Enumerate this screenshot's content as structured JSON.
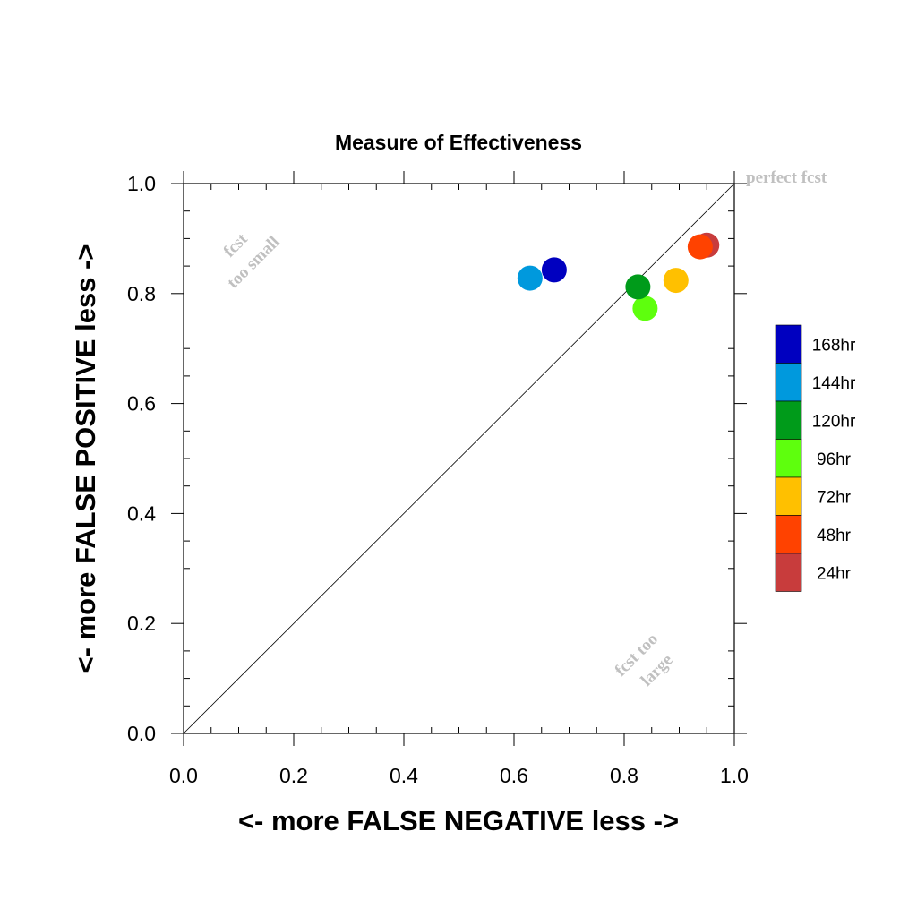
{
  "chart_data": {
    "type": "scatter",
    "title": "Measure of Effectiveness",
    "xlabel": "<- more   FALSE NEGATIVE   less ->",
    "ylabel": "<- more   FALSE POSITIVE   less ->",
    "xlim": [
      0.0,
      1.0
    ],
    "ylim": [
      0.0,
      1.0
    ],
    "x_ticks": [
      "0.0",
      "0.2",
      "0.4",
      "0.6",
      "0.8",
      "1.0"
    ],
    "y_ticks": [
      "0.0",
      "0.2",
      "0.4",
      "0.6",
      "0.8",
      "1.0"
    ],
    "grid": false,
    "diagonal_line": true,
    "legend_position": "right",
    "annotations": {
      "perfect": "perfect fcst",
      "small_line1": "fcst",
      "small_line2": "too small",
      "large_line1": "fcst too",
      "large_line2": "large"
    },
    "series": [
      {
        "name": "168hr",
        "color": "#0000c0",
        "x": 0.673,
        "y": 0.843
      },
      {
        "name": "144hr",
        "color": "#0099dd",
        "x": 0.629,
        "y": 0.828
      },
      {
        "name": "120hr",
        "color": "#009b1a",
        "x": 0.825,
        "y": 0.812
      },
      {
        "name": "96hr",
        "color": "#5eff0d",
        "x": 0.838,
        "y": 0.773
      },
      {
        "name": "72hr",
        "color": "#ffc000",
        "x": 0.894,
        "y": 0.824
      },
      {
        "name": "48hr",
        "color": "#ff4200",
        "x": 0.938,
        "y": 0.885
      },
      {
        "name": "24hr",
        "color": "#c83c3c",
        "x": 0.95,
        "y": 0.888
      }
    ],
    "draw_order": [
      6,
      5,
      4,
      3,
      2,
      1,
      0
    ]
  }
}
